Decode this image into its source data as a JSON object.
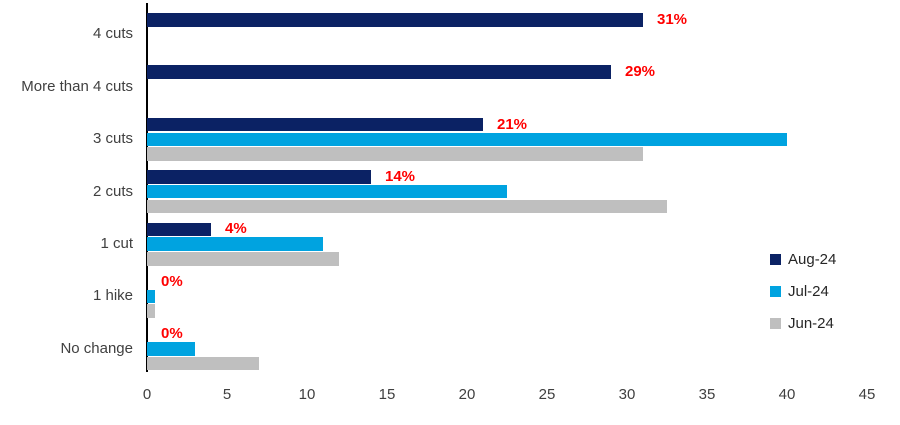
{
  "chart_data": {
    "type": "bar",
    "orientation": "horizontal",
    "title": "",
    "xlabel": "",
    "ylabel": "",
    "categories": [
      "4 cuts",
      "More than 4 cuts",
      "3 cuts",
      "2 cuts",
      "1 cut",
      "1 hike",
      "No change"
    ],
    "series": [
      {
        "name": "Aug-24",
        "color": "#0B2264",
        "values": [
          31,
          29,
          21,
          14,
          4,
          0,
          0
        ],
        "data_labels": [
          "31%",
          "29%",
          "21%",
          "14%",
          "4%",
          "0%",
          "0%"
        ]
      },
      {
        "name": "Jul-24",
        "color": "#00A3E0",
        "values": [
          0,
          0,
          40,
          22.5,
          11,
          0.5,
          3
        ],
        "data_labels": null
      },
      {
        "name": "Jun-24",
        "color": "#BFBFBF",
        "values": [
          0,
          0,
          31,
          32.5,
          12,
          0.5,
          7
        ],
        "data_labels": null
      }
    ],
    "xlim": [
      0,
      45
    ],
    "x_ticks": [
      0,
      5,
      10,
      15,
      20,
      25,
      30,
      35,
      40,
      45
    ],
    "data_label_color": "#FF0000",
    "axis_color": "#000000",
    "tick_label_color": "#404040",
    "grid": "off",
    "legend_position": "middle-right"
  }
}
